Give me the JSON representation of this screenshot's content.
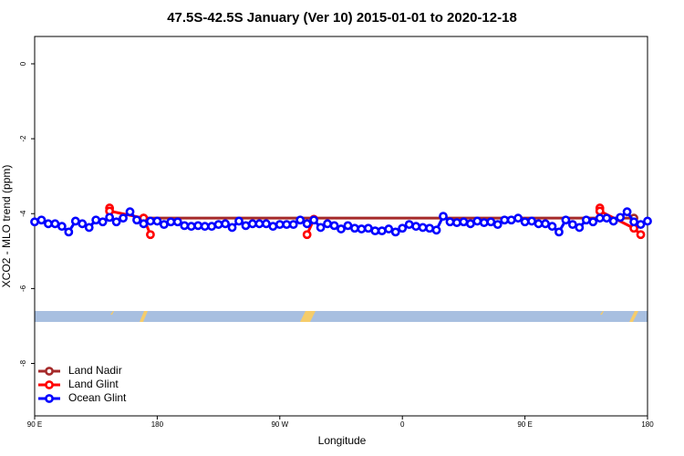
{
  "chart_data": {
    "type": "line",
    "title": "47.5S-42.5S January (Ver 10)   2015-01-01 to 2020-12-18",
    "x_label": "Longitude",
    "y_label": "XCO2 - MLO trend (ppm)",
    "xlim": [
      90,
      540
    ],
    "ylim": [
      -9.4,
      0.73
    ],
    "xticks": [
      {
        "value": 90,
        "label": "90 E"
      },
      180,
      {
        "value": 270,
        "label": "90 W"
      },
      {
        "value": 360,
        "label": "0"
      },
      {
        "value": 450,
        "label": "90 E"
      },
      {
        "value": 540,
        "label": "180"
      }
    ],
    "yticks": [
      0,
      -2,
      -4,
      -6,
      -8
    ],
    "legend": "bottom-left",
    "series": [
      {
        "name": "Land Nadir",
        "color": "#a52a2a",
        "x": [
          170,
          530
        ],
        "values": [
          -4.12,
          -4.12
        ]
      },
      {
        "name": "Land Glint",
        "color": "#ff0000",
        "x": [
          145,
          145,
          170,
          175,
          null,
          290,
          295,
          null,
          505,
          505,
          530,
          535
        ],
        "values": [
          -3.85,
          -3.93,
          -4.12,
          -4.56,
          null,
          -4.56,
          -4.15,
          null,
          -3.85,
          -3.93,
          -4.39,
          -4.56
        ]
      },
      {
        "name": "Ocean Glint",
        "color": "#0000ff",
        "x": [
          90,
          95,
          100,
          105,
          110,
          115,
          120,
          125,
          130,
          135,
          140,
          145,
          150,
          155,
          160,
          165,
          170,
          175,
          180,
          185,
          190,
          195,
          200,
          205,
          210,
          215,
          220,
          225,
          230,
          235,
          240,
          245,
          250,
          255,
          260,
          265,
          270,
          275,
          280,
          285,
          290,
          295,
          300,
          305,
          310,
          315,
          320,
          325,
          330,
          335,
          340,
          345,
          350,
          355,
          360,
          365,
          370,
          375,
          380,
          385,
          390,
          395,
          400,
          405,
          410,
          415,
          420,
          425,
          430,
          435,
          440,
          445,
          450,
          455,
          460,
          465,
          470,
          475,
          480,
          485,
          490,
          495,
          500,
          505,
          510,
          515,
          520,
          525,
          530,
          535,
          540
        ],
        "values": [
          -4.22,
          -4.17,
          -4.27,
          -4.27,
          -4.34,
          -4.49,
          -4.2,
          -4.27,
          -4.37,
          -4.17,
          -4.22,
          -4.1,
          -4.22,
          -4.12,
          -3.95,
          -4.17,
          -4.27,
          -4.2,
          -4.2,
          -4.29,
          -4.22,
          -4.22,
          -4.32,
          -4.34,
          -4.32,
          -4.34,
          -4.34,
          -4.29,
          -4.27,
          -4.37,
          -4.2,
          -4.32,
          -4.27,
          -4.27,
          -4.27,
          -4.34,
          -4.29,
          -4.29,
          -4.29,
          -4.17,
          -4.27,
          -4.17,
          -4.37,
          -4.27,
          -4.32,
          -4.41,
          -4.32,
          -4.39,
          -4.41,
          -4.39,
          -4.46,
          -4.46,
          -4.41,
          -4.49,
          -4.39,
          -4.29,
          -4.34,
          -4.37,
          -4.39,
          -4.44,
          -4.07,
          -4.22,
          -4.24,
          -4.22,
          -4.27,
          -4.2,
          -4.24,
          -4.22,
          -4.29,
          -4.17,
          -4.17,
          -4.12,
          -4.22,
          -4.2,
          -4.27,
          -4.27,
          -4.34,
          -4.49,
          -4.17,
          -4.29,
          -4.37,
          -4.17,
          -4.22,
          -4.12,
          -4.12,
          -4.2,
          -4.1,
          -3.95,
          -4.22,
          -4.29,
          -4.2
        ]
      }
    ]
  }
}
